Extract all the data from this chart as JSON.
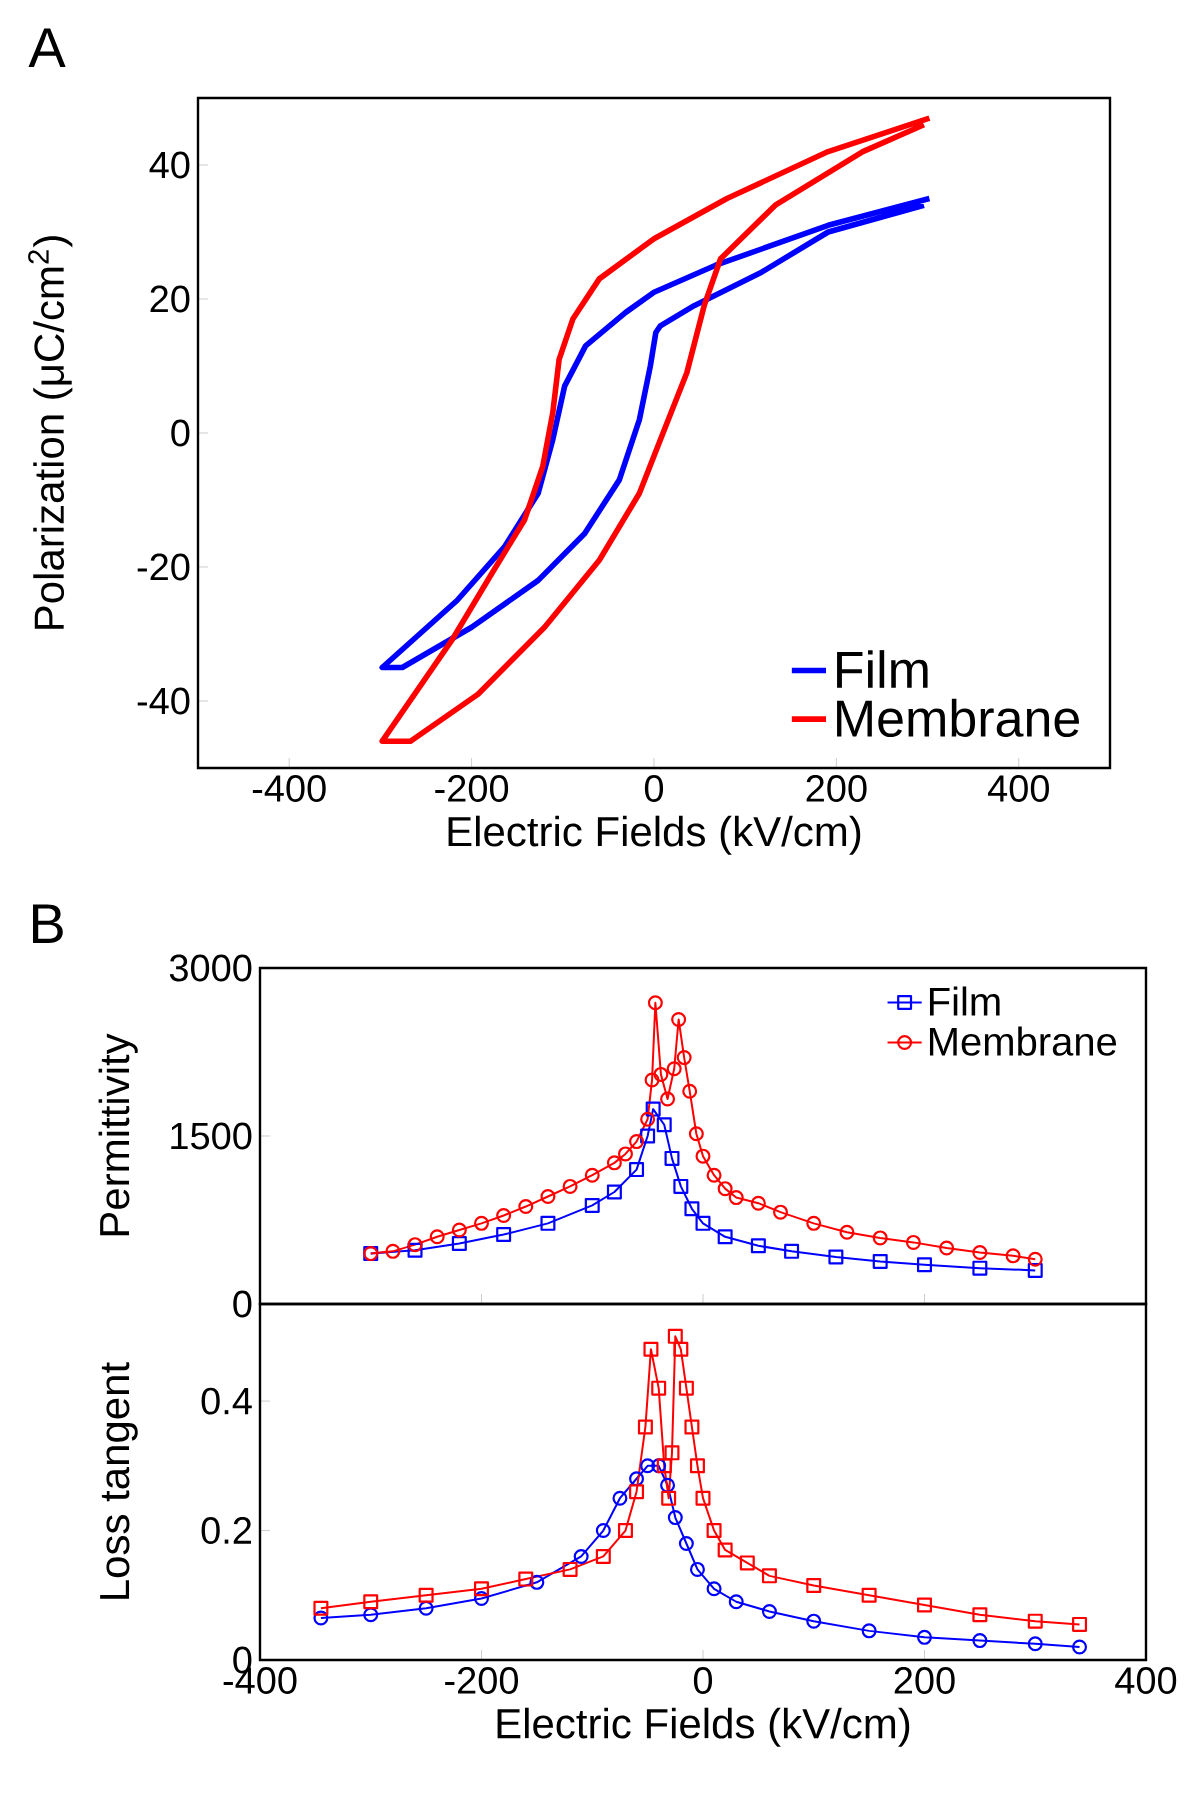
{
  "chart_data": [
    {
      "type": "line",
      "annotations": [
        "A"
      ],
      "xlabel": "Electric Fields (kV/cm)",
      "ylabel": "Polarization (μC/cm$^{2}$)",
      "xlim": [
        -500,
        500
      ],
      "ylim": [
        -50,
        50
      ],
      "xticks": [
        -400,
        -200,
        0,
        200,
        400
      ],
      "yticks": [
        -40,
        -20,
        0,
        20,
        40
      ],
      "legend": "bottom right",
      "series": [
        {
          "name": "Film",
          "color": "#0000ff",
          "x": [
            302,
            191,
            67,
            0,
            -31,
            -75,
            -98,
            -111,
            -127,
            -164,
            -216,
            -298,
            -276,
            -200,
            -127,
            -76,
            -38,
            -16,
            -4,
            2,
            7,
            44,
            118,
            191,
            296
          ],
          "values": [
            35,
            31,
            25,
            21,
            18,
            13,
            7,
            -1,
            -9,
            -17,
            -25,
            -35,
            -35,
            -29,
            -22,
            -15,
            -7,
            2,
            10,
            15,
            16,
            19,
            24,
            30,
            34
          ]
        },
        {
          "name": "Membrane",
          "color": "#ff0000",
          "x": [
            302,
            191,
            80,
            0,
            -60,
            -89,
            -104,
            -111,
            -122,
            -142,
            -178,
            -222,
            -298,
            -267,
            -193,
            -120,
            -60,
            -16,
            7,
            36,
            55,
            73,
            133,
            229,
            296
          ],
          "values": [
            47,
            42,
            35,
            29,
            23,
            17,
            11,
            3,
            -5,
            -13,
            -21,
            -31,
            -46,
            -46,
            -39,
            -29,
            -19,
            -9,
            -1,
            9,
            19,
            26,
            34,
            42,
            46
          ]
        }
      ]
    },
    {
      "type": "line",
      "annotations": [
        "B"
      ],
      "ylabel": "Permittivity",
      "xlim": [
        -400,
        400
      ],
      "ylim": [
        0,
        3000
      ],
      "xticks": [
        {
          "value": -400,
          "label": null
        },
        {
          "value": -200,
          "label": null
        },
        {
          "value": 0,
          "label": null
        },
        {
          "value": 200,
          "label": null
        },
        {
          "value": 400,
          "label": null
        }
      ],
      "yticks": [
        0,
        1500,
        3000
      ],
      "tick_labels": "y",
      "legend": "top right",
      "series": [
        {
          "name": "Film",
          "color": "#0000ff",
          "marker": "square",
          "x": [
            -300,
            -260,
            -220,
            -180,
            -140,
            -100,
            -80,
            -60,
            -50,
            -45,
            -35,
            -28,
            -20,
            -10,
            0,
            20,
            50,
            80,
            120,
            160,
            200,
            250,
            300
          ],
          "values": [
            450,
            480,
            540,
            620,
            720,
            880,
            1000,
            1200,
            1500,
            1740,
            1600,
            1300,
            1050,
            850,
            720,
            600,
            520,
            470,
            420,
            380,
            350,
            320,
            300
          ]
        },
        {
          "name": "Membrane",
          "color": "#ff0000",
          "marker": "circle",
          "x": [
            -300,
            -280,
            -260,
            -240,
            -220,
            -200,
            -180,
            -160,
            -140,
            -120,
            -100,
            -80,
            -70,
            -60,
            -50,
            -46,
            -43,
            -38,
            -32,
            -26,
            -22,
            -17,
            -12,
            -6,
            0,
            10,
            20,
            30,
            50,
            70,
            100,
            130,
            160,
            190,
            220,
            250,
            280,
            300
          ],
          "values": [
            450,
            470,
            530,
            600,
            660,
            720,
            790,
            870,
            960,
            1050,
            1150,
            1260,
            1340,
            1450,
            1650,
            2000,
            2690,
            2050,
            1830,
            2100,
            2540,
            2200,
            1900,
            1520,
            1320,
            1150,
            1030,
            950,
            900,
            820,
            720,
            640,
            590,
            550,
            500,
            460,
            430,
            400
          ]
        }
      ]
    },
    {
      "type": "line",
      "xlabel": "Electric Fields (kV/cm)",
      "ylabel": "Loss tangent",
      "xlim": [
        -400,
        400
      ],
      "ylim": [
        0,
        0.55
      ],
      "xticks": [
        -400,
        -200,
        0,
        200,
        400
      ],
      "yticks": [
        0,
        0.2,
        0.4
      ],
      "series": [
        {
          "color": "#0000ff",
          "marker": "circle",
          "x": [
            -345,
            -300,
            -250,
            -200,
            -150,
            -110,
            -90,
            -75,
            -60,
            -50,
            -40,
            -32,
            -25,
            -15,
            -5,
            10,
            30,
            60,
            100,
            150,
            200,
            250,
            300,
            340
          ],
          "values": [
            0.065,
            0.07,
            0.08,
            0.095,
            0.12,
            0.16,
            0.2,
            0.25,
            0.28,
            0.3,
            0.3,
            0.27,
            0.22,
            0.18,
            0.14,
            0.11,
            0.09,
            0.075,
            0.06,
            0.045,
            0.035,
            0.03,
            0.025,
            0.02
          ]
        },
        {
          "color": "#ff0000",
          "marker": "square",
          "x": [
            -345,
            -300,
            -250,
            -200,
            -160,
            -120,
            -90,
            -70,
            -60,
            -52,
            -47,
            -40,
            -35,
            -31,
            -28,
            -25,
            -20,
            -15,
            -10,
            -5,
            0,
            10,
            20,
            40,
            60,
            100,
            150,
            200,
            250,
            300,
            340
          ],
          "values": [
            0.08,
            0.09,
            0.1,
            0.11,
            0.125,
            0.14,
            0.16,
            0.2,
            0.26,
            0.36,
            0.48,
            0.42,
            0.3,
            0.25,
            0.32,
            0.5,
            0.48,
            0.42,
            0.36,
            0.3,
            0.25,
            0.2,
            0.17,
            0.15,
            0.13,
            0.115,
            0.1,
            0.085,
            0.07,
            0.06,
            0.055
          ]
        }
      ]
    }
  ]
}
